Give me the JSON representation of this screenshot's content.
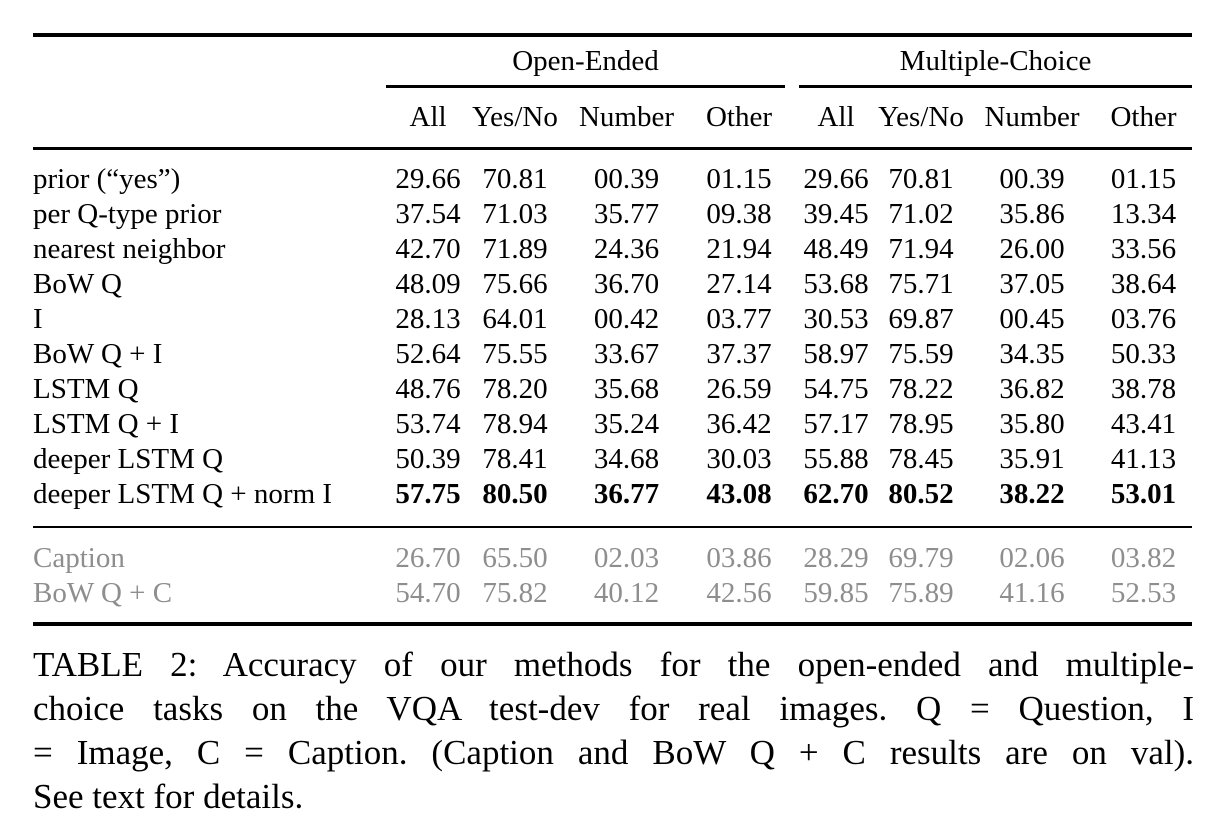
{
  "table": {
    "group_headers": [
      "Open-Ended",
      "Multiple-Choice"
    ],
    "sub_headers": [
      "All",
      "Yes/No",
      "Number",
      "Other"
    ],
    "rows": [
      {
        "label": "prior (“yes”)",
        "style": "normal",
        "values": [
          "29.66",
          "70.81",
          "00.39",
          "01.15",
          "29.66",
          "70.81",
          "00.39",
          "01.15"
        ]
      },
      {
        "label": "per Q-type prior",
        "style": "normal",
        "values": [
          "37.54",
          "71.03",
          "35.77",
          "09.38",
          "39.45",
          "71.02",
          "35.86",
          "13.34"
        ]
      },
      {
        "label": "nearest neighbor",
        "style": "normal",
        "values": [
          "42.70",
          "71.89",
          "24.36",
          "21.94",
          "48.49",
          "71.94",
          "26.00",
          "33.56"
        ]
      },
      {
        "label": "BoW Q",
        "style": "normal",
        "values": [
          "48.09",
          "75.66",
          "36.70",
          "27.14",
          "53.68",
          "75.71",
          "37.05",
          "38.64"
        ]
      },
      {
        "label": "I",
        "style": "normal",
        "values": [
          "28.13",
          "64.01",
          "00.42",
          "03.77",
          "30.53",
          "69.87",
          "00.45",
          "03.76"
        ]
      },
      {
        "label": "BoW Q + I",
        "style": "normal",
        "values": [
          "52.64",
          "75.55",
          "33.67",
          "37.37",
          "58.97",
          "75.59",
          "34.35",
          "50.33"
        ]
      },
      {
        "label": "LSTM Q",
        "style": "normal",
        "values": [
          "48.76",
          "78.20",
          "35.68",
          "26.59",
          "54.75",
          "78.22",
          "36.82",
          "38.78"
        ]
      },
      {
        "label": "LSTM Q + I",
        "style": "normal",
        "values": [
          "53.74",
          "78.94",
          "35.24",
          "36.42",
          "57.17",
          "78.95",
          "35.80",
          "43.41"
        ]
      },
      {
        "label": "deeper LSTM Q",
        "style": "normal",
        "values": [
          "50.39",
          "78.41",
          "34.68",
          "30.03",
          "55.88",
          "78.45",
          "35.91",
          "41.13"
        ]
      },
      {
        "label": "deeper LSTM Q + norm I",
        "style": "bold-values",
        "values": [
          "57.75",
          "80.50",
          "36.77",
          "43.08",
          "62.70",
          "80.52",
          "38.22",
          "53.01"
        ]
      }
    ],
    "gray_rows": [
      {
        "label": "Caption",
        "style": "gray",
        "values": [
          "26.70",
          "65.50",
          "02.03",
          "03.86",
          "28.29",
          "69.79",
          "02.06",
          "03.82"
        ]
      },
      {
        "label": "BoW Q + C",
        "style": "gray",
        "values": [
          "54.70",
          "75.82",
          "40.12",
          "42.56",
          "59.85",
          "75.89",
          "41.16",
          "52.53"
        ]
      }
    ]
  },
  "caption": {
    "lines": [
      "TABLE 2: Accuracy of our methods for the open-ended and multiple-",
      "choice tasks on the VQA test-dev for real images. Q = Question, I",
      "= Image, C = Caption. (Caption and BoW Q + C results are on val).",
      "See text for details."
    ]
  },
  "colors": {
    "text": "#000000",
    "muted_row_text": "#8e8e8e",
    "rule": "#000000",
    "background": "#ffffff"
  }
}
